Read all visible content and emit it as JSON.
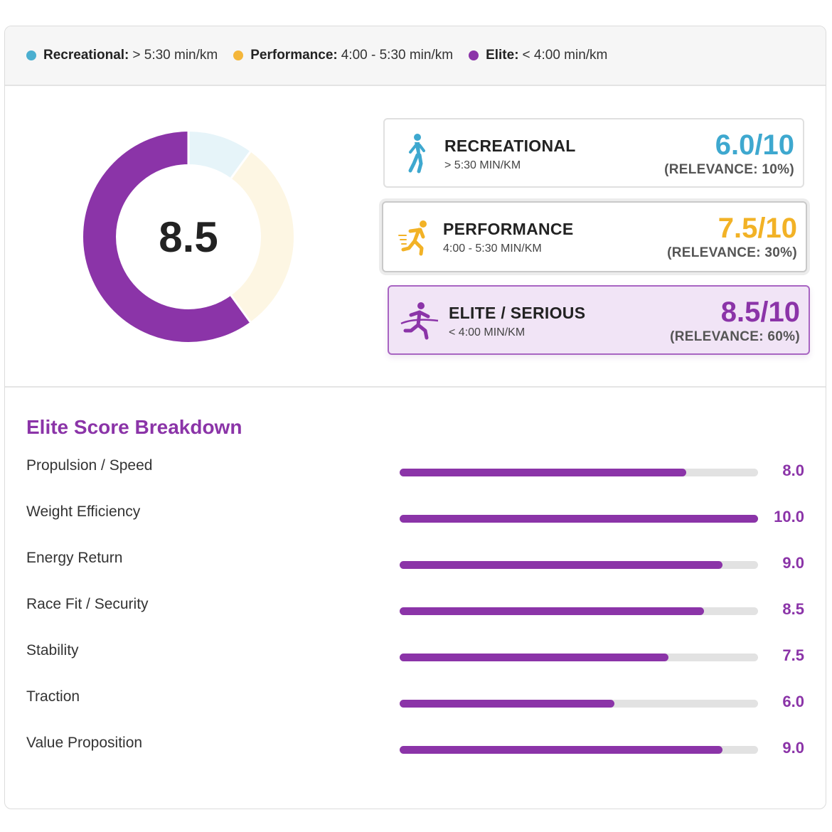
{
  "legend": [
    {
      "label": "Recreational:",
      "range": "> 5:30 min/km",
      "color": "#4bafd0"
    },
    {
      "label": "Performance:",
      "range": "4:00 - 5:30 min/km",
      "color": "#f4b63a"
    },
    {
      "label": "Elite:",
      "range": "< 4:00 min/km",
      "color": "#8b34a8"
    }
  ],
  "donut": {
    "center_value": "8.5",
    "segments": [
      {
        "name": "Recreational",
        "relevance": 10,
        "color": "#e6f4f9"
      },
      {
        "name": "Performance",
        "relevance": 30,
        "color": "#fdf6e3"
      },
      {
        "name": "Elite",
        "relevance": 60,
        "color": "#8b34a8"
      }
    ]
  },
  "segments": {
    "recreational": {
      "title": "RECREATIONAL",
      "sub": "> 5:30 MIN/KM",
      "score": "6.0/10",
      "relevance": "(RELEVANCE: 10%)",
      "color": "#3ea8cf",
      "icon": "walking-person-icon"
    },
    "performance": {
      "title": "PERFORMANCE",
      "sub": "4:00 - 5:30 MIN/KM",
      "score": "7.5/10",
      "relevance": "(RELEVANCE: 30%)",
      "color": "#f2b226",
      "icon": "running-person-icon"
    },
    "elite": {
      "title": "ELITE / SERIOUS",
      "sub": "< 4:00 MIN/KM",
      "score": "8.5/10",
      "relevance": "(RELEVANCE: 60%)",
      "color": "#8b34a8",
      "icon": "finish-line-runner-icon"
    }
  },
  "breakdown": {
    "title": "Elite Score Breakdown",
    "max": 10,
    "items": [
      {
        "label": "Propulsion / Speed",
        "value": "8.0"
      },
      {
        "label": "Weight Efficiency",
        "value": "10.0"
      },
      {
        "label": "Energy Return",
        "value": "9.0"
      },
      {
        "label": "Race Fit / Security",
        "value": "8.5"
      },
      {
        "label": "Stability",
        "value": "7.5"
      },
      {
        "label": "Traction",
        "value": "6.0"
      },
      {
        "label": "Value Proposition",
        "value": "9.0"
      }
    ]
  }
}
